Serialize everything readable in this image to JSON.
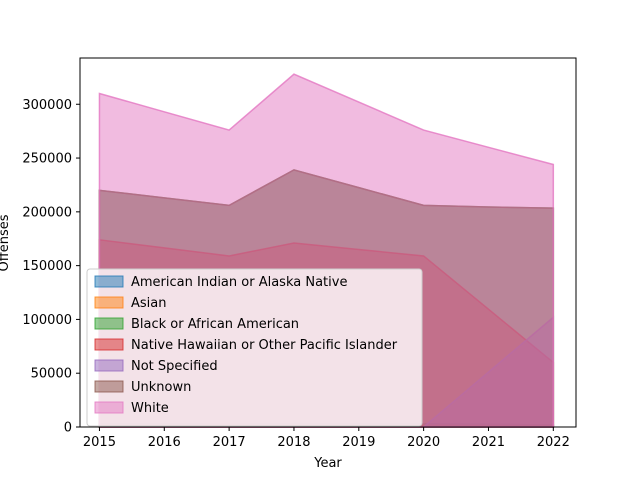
{
  "chart_data": {
    "type": "area",
    "title": "",
    "xlabel": "Year",
    "ylabel": "Offenses",
    "x": [
      2015,
      2016,
      2017,
      2018,
      2019,
      2020,
      2021,
      2022
    ],
    "xlim": [
      2014.7,
      2022.35
    ],
    "ylim": [
      0,
      343000
    ],
    "x_ticks": [
      2015,
      2016,
      2017,
      2018,
      2019,
      2020,
      2021,
      2022
    ],
    "y_ticks": [
      0,
      50000,
      100000,
      150000,
      200000,
      250000,
      300000
    ],
    "grid": false,
    "stacked": false,
    "legend_position": "lower-left",
    "series": [
      {
        "name": "American Indian or Alaska Native",
        "color": "#1f77b4",
        "values": [
          3000,
          3000,
          2800,
          3100,
          3000,
          2900,
          2500,
          2000
        ]
      },
      {
        "name": "Asian",
        "color": "#ff7f0e",
        "values": [
          2000,
          2000,
          1800,
          2000,
          2000,
          1800,
          1500,
          1500
        ]
      },
      {
        "name": "Black or African American",
        "color": "#2ca02c",
        "values": [
          220000,
          213000,
          206000,
          239000,
          222500,
          206000,
          204500,
          203500
        ]
      },
      {
        "name": "Native Hawaiian or Other Pacific Islander",
        "color": "#d62728",
        "values": [
          174000,
          166500,
          159000,
          171000,
          165000,
          159000,
          109500,
          60000
        ]
      },
      {
        "name": "Not Specified",
        "color": "#9467bd",
        "values": [
          0,
          0,
          0,
          0,
          0,
          0,
          51000,
          102000
        ]
      },
      {
        "name": "Unknown",
        "color": "#8c564b",
        "values": [
          220000,
          213000,
          206000,
          239000,
          222500,
          206000,
          204500,
          203500
        ]
      },
      {
        "name": "White",
        "color": "#e377c2",
        "values": [
          310000,
          293000,
          276000,
          328000,
          302000,
          276000,
          260000,
          244000
        ]
      }
    ]
  }
}
